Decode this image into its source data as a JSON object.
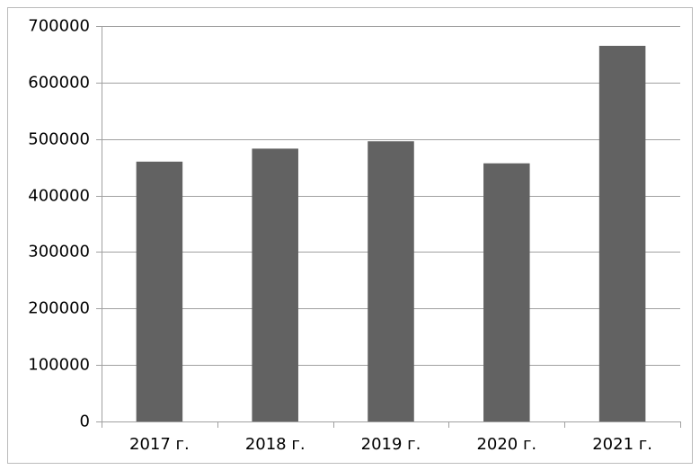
{
  "chart_data": {
    "type": "bar",
    "categories": [
      "2017 г.",
      "2018 г.",
      "2019 г.",
      "2020 г.",
      "2021 г."
    ],
    "values": [
      460000,
      483000,
      496000,
      457000,
      665000
    ],
    "color": "#626262",
    "ylim": [
      0,
      700000
    ],
    "yticks": [
      0,
      100000,
      200000,
      300000,
      400000,
      500000,
      600000,
      700000
    ],
    "grid": true
  }
}
